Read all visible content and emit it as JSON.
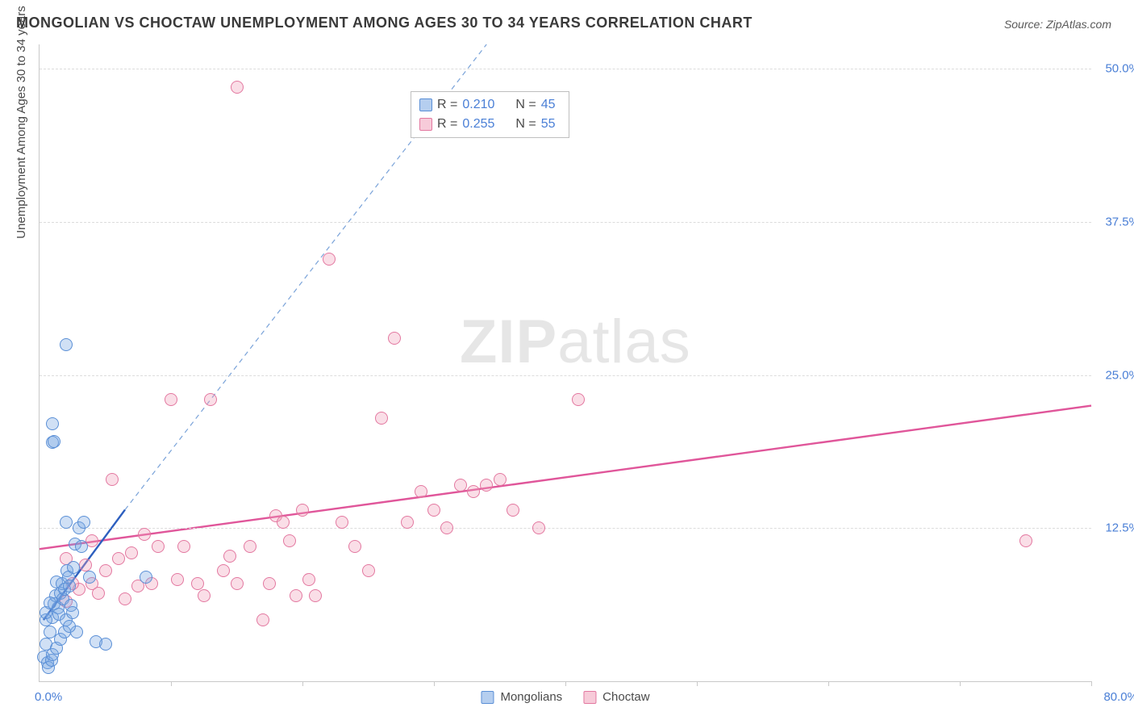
{
  "title": "MONGOLIAN VS CHOCTAW UNEMPLOYMENT AMONG AGES 30 TO 34 YEARS CORRELATION CHART",
  "source_label": "Source: ZipAtlas.com",
  "y_axis_label": "Unemployment Among Ages 30 to 34 years",
  "watermark": {
    "bold": "ZIP",
    "rest": "atlas"
  },
  "chart": {
    "type": "scatter",
    "xlim": [
      0,
      80
    ],
    "ylim": [
      0,
      52
    ],
    "x_min_label": "0.0%",
    "x_max_label": "80.0%",
    "x_tick_positions": [
      10,
      20,
      30,
      40,
      50,
      60,
      70,
      80
    ],
    "y_ticks": [
      {
        "value": 12.5,
        "label": "12.5%"
      },
      {
        "value": 25.0,
        "label": "25.0%"
      },
      {
        "value": 37.5,
        "label": "37.5%"
      },
      {
        "value": 50.0,
        "label": "50.0%"
      }
    ],
    "background_color": "#ffffff",
    "grid_color": "#dcdcdc",
    "axis_color": "#c9c9c9",
    "tick_label_color": "#4a7fd6",
    "series": {
      "mongolians": {
        "label": "Mongolians",
        "fill": "rgba(120,165,225,0.35)",
        "stroke": "#5a8fd6",
        "marker_radius": 8,
        "trend": {
          "solid": {
            "x1": 0.3,
            "y1": 5.0,
            "x2": 6.5,
            "y2": 14.0,
            "color": "#2d5fbf",
            "width": 2.4
          },
          "dashed": {
            "x1": 6.5,
            "y1": 14.0,
            "x2": 34.0,
            "y2": 52.0,
            "color": "#7aa3d9",
            "width": 1.2,
            "dash": "6 5"
          }
        },
        "R": "0.210",
        "N": "45",
        "points": [
          [
            0.3,
            2.0
          ],
          [
            0.5,
            3.0
          ],
          [
            0.6,
            1.5
          ],
          [
            0.8,
            4.0
          ],
          [
            1.0,
            5.2
          ],
          [
            1.1,
            6.3
          ],
          [
            1.2,
            7.0
          ],
          [
            1.3,
            8.1
          ],
          [
            1.4,
            6.0
          ],
          [
            1.5,
            5.5
          ],
          [
            1.6,
            7.2
          ],
          [
            1.7,
            8.0
          ],
          [
            1.8,
            6.7
          ],
          [
            1.9,
            7.5
          ],
          [
            2.0,
            5.0
          ],
          [
            2.1,
            9.0
          ],
          [
            2.2,
            8.5
          ],
          [
            2.3,
            7.8
          ],
          [
            2.4,
            6.2
          ],
          [
            2.5,
            5.6
          ],
          [
            2.6,
            9.3
          ],
          [
            2.7,
            11.2
          ],
          [
            2.8,
            4.0
          ],
          [
            3.0,
            12.5
          ],
          [
            3.2,
            11.0
          ],
          [
            3.4,
            13.0
          ],
          [
            3.8,
            8.5
          ],
          [
            4.3,
            3.2
          ],
          [
            5.0,
            3.0
          ],
          [
            2.0,
            27.5
          ],
          [
            1.0,
            21.0
          ],
          [
            1.0,
            19.5
          ],
          [
            1.1,
            19.6
          ],
          [
            2.0,
            13.0
          ],
          [
            0.7,
            1.1
          ],
          [
            0.9,
            1.7
          ],
          [
            1.0,
            2.2
          ],
          [
            1.3,
            2.7
          ],
          [
            1.6,
            3.4
          ],
          [
            1.9,
            4.0
          ],
          [
            2.3,
            4.5
          ],
          [
            0.5,
            5.0
          ],
          [
            0.5,
            5.6
          ],
          [
            0.8,
            6.4
          ],
          [
            8.1,
            8.5
          ]
        ]
      },
      "choctaw": {
        "label": "Choctaw",
        "fill": "rgba(240,160,185,0.35)",
        "stroke": "#e378a0",
        "marker_radius": 8,
        "trend": {
          "solid": {
            "x1": 0.0,
            "y1": 10.8,
            "x2": 80.0,
            "y2": 22.5,
            "color": "#e0569a",
            "width": 2.4
          },
          "dashed": null
        },
        "R": "0.255",
        "N": "55",
        "points": [
          [
            2,
            6.5
          ],
          [
            3,
            7.5
          ],
          [
            4,
            8
          ],
          [
            5,
            9
          ],
          [
            6,
            10
          ],
          [
            7,
            10.5
          ],
          [
            8,
            12
          ],
          [
            5.5,
            16.5
          ],
          [
            10,
            23
          ],
          [
            12,
            8
          ],
          [
            13,
            23
          ],
          [
            14,
            9
          ],
          [
            15,
            8
          ],
          [
            16,
            11
          ],
          [
            17,
            5
          ],
          [
            18,
            13.5
          ],
          [
            19,
            11.5
          ],
          [
            20,
            14
          ],
          [
            15,
            48.5
          ],
          [
            22,
            34.5
          ],
          [
            23,
            13
          ],
          [
            24,
            11
          ],
          [
            25,
            9
          ],
          [
            26,
            21.5
          ],
          [
            27,
            28
          ],
          [
            28,
            13
          ],
          [
            29,
            15.5
          ],
          [
            30,
            14
          ],
          [
            31,
            12.5
          ],
          [
            32,
            16
          ],
          [
            33,
            15.5
          ],
          [
            34,
            16
          ],
          [
            35,
            16.5
          ],
          [
            36,
            14
          ],
          [
            38,
            12.5
          ],
          [
            41,
            23
          ],
          [
            75,
            11.5
          ],
          [
            2.5,
            8
          ],
          [
            3.5,
            9.5
          ],
          [
            4.5,
            7.2
          ],
          [
            6.5,
            6.7
          ],
          [
            7.5,
            7.8
          ],
          [
            9,
            11
          ],
          [
            10.5,
            8.3
          ],
          [
            12.5,
            7.0
          ],
          [
            14.5,
            10.2
          ],
          [
            17.5,
            8.0
          ],
          [
            18.5,
            13.0
          ],
          [
            19.5,
            7.0
          ],
          [
            20.5,
            8.3
          ],
          [
            21,
            7.0
          ],
          [
            11,
            11.0
          ],
          [
            8.5,
            8.0
          ],
          [
            4.0,
            11.5
          ],
          [
            2.0,
            10.0
          ]
        ]
      }
    },
    "legend_top": [
      {
        "swatch": "blue",
        "r_label": "R = ",
        "r_val": "0.210",
        "n_label": "N = ",
        "n_val": "45"
      },
      {
        "swatch": "pink",
        "r_label": "R = ",
        "r_val": "0.255",
        "n_label": "N = ",
        "n_val": "55"
      }
    ],
    "legend_bottom": [
      {
        "swatch": "blue",
        "label": "Mongolians"
      },
      {
        "swatch": "pink",
        "label": "Choctaw"
      }
    ]
  }
}
